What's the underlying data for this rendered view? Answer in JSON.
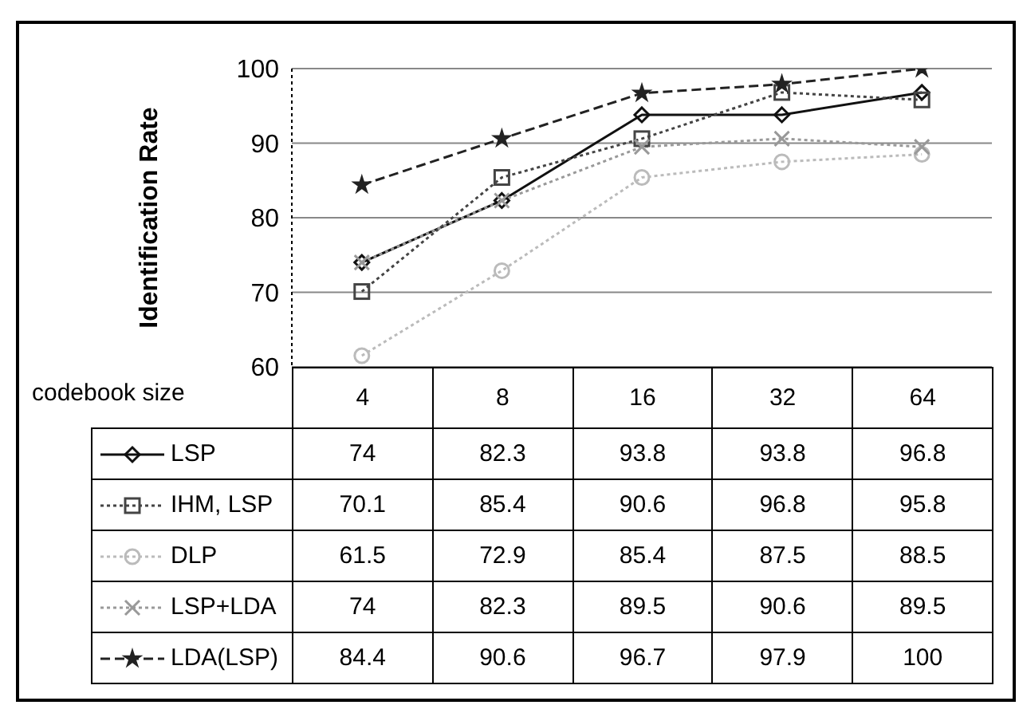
{
  "chart_data": {
    "type": "line",
    "xlabel": "codebook size",
    "ylabel": "Identification Rate",
    "categories": [
      "4",
      "8",
      "16",
      "32",
      "64"
    ],
    "series": [
      {
        "name": "LSP",
        "color": "#111111",
        "marker": "diamond",
        "line_style": "solid",
        "values": [
          74,
          82.3,
          93.8,
          93.8,
          96.8
        ]
      },
      {
        "name": "IHM, LSP",
        "color": "#444444",
        "marker": "square",
        "line_style": "dotted",
        "values": [
          70.1,
          85.4,
          90.6,
          96.8,
          95.8
        ]
      },
      {
        "name": "DLP",
        "color": "#bbbbbb",
        "marker": "circle",
        "line_style": "dotted",
        "values": [
          61.5,
          72.9,
          85.4,
          87.5,
          88.5
        ]
      },
      {
        "name": "LSP+LDA",
        "color": "#999999",
        "marker": "cross",
        "line_style": "dotted",
        "values": [
          74,
          82.3,
          89.5,
          90.6,
          89.5
        ]
      },
      {
        "name": "LDA(LSP)",
        "color": "#222222",
        "marker": "star",
        "line_style": "dashed",
        "values": [
          84.4,
          90.6,
          96.7,
          97.9,
          100
        ]
      }
    ],
    "ylim": [
      60,
      100
    ],
    "yticks": [
      60,
      70,
      80,
      90,
      100
    ],
    "grid": "y",
    "legend": "bottom left",
    "data_labels": true
  }
}
